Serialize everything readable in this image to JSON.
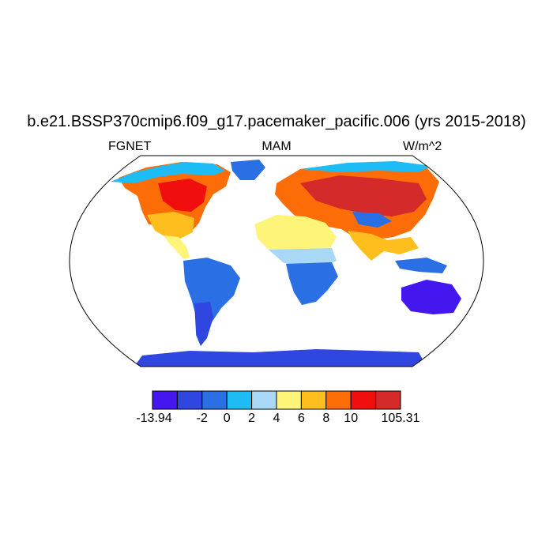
{
  "title": "b.e21.BSSP370cmip6.f09_g17.pacemaker_pacific.006 (yrs 2015-2018)",
  "left_label": "FGNET",
  "center_label": "MAM",
  "right_label": "W/m^2",
  "colorbar": {
    "colors": [
      "#4416f0",
      "#2f46e1",
      "#2a6fe3",
      "#1ebcf5",
      "#a8d8f5",
      "#fff47a",
      "#fdbe1e",
      "#fd6d07",
      "#f00e0e",
      "#d52a2a"
    ],
    "labels": [
      "-13.94",
      "-2",
      "0",
      "2",
      "4",
      "6",
      "8",
      "10",
      "105.31"
    ]
  },
  "map": {
    "projection": "Robinson",
    "ocean_fill": "white",
    "dominant_regions": {
      "north_america": "orange-red",
      "south_america": "blue",
      "africa_north": "yellow",
      "africa_south": "blue",
      "europe_asia": "red",
      "australia": "blue",
      "antarctica": "blue"
    }
  }
}
